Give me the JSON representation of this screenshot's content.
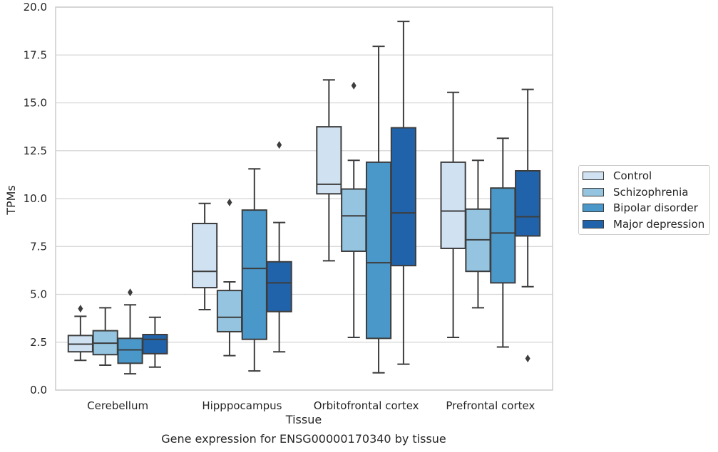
{
  "chart_data": {
    "type": "box",
    "title": "Gene expression for ENSG00000170340 by tissue",
    "xlabel": "Tissue",
    "ylabel": "TPMs",
    "ylim": [
      0,
      20
    ],
    "yticks": [
      "0.0",
      "2.5",
      "5.0",
      "7.5",
      "10.0",
      "12.5",
      "15.0",
      "17.5",
      "20.0"
    ],
    "categories": [
      "Cerebellum",
      "Hipppocampus",
      "Orbitofrontal cortex",
      "Prefrontal cortex"
    ],
    "grid": true,
    "legend_position": "right",
    "series": [
      {
        "name": "Control",
        "color": "#d0e1f2",
        "boxes": [
          {
            "whislo": 1.55,
            "q1": 2.0,
            "med": 2.4,
            "q3": 2.85,
            "whishi": 3.85,
            "fliers": [
              4.25
            ]
          },
          {
            "whislo": 4.2,
            "q1": 5.35,
            "med": 6.2,
            "q3": 8.7,
            "whishi": 9.75,
            "fliers": []
          },
          {
            "whislo": 6.75,
            "q1": 10.25,
            "med": 10.75,
            "q3": 13.75,
            "whishi": 16.2,
            "fliers": []
          },
          {
            "whislo": 2.75,
            "q1": 7.4,
            "med": 9.35,
            "q3": 11.9,
            "whishi": 15.55,
            "fliers": []
          }
        ]
      },
      {
        "name": "Schizophrenia",
        "color": "#94c4df",
        "boxes": [
          {
            "whislo": 1.3,
            "q1": 1.85,
            "med": 2.45,
            "q3": 3.1,
            "whishi": 4.3,
            "fliers": []
          },
          {
            "whislo": 1.8,
            "q1": 3.05,
            "med": 3.8,
            "q3": 5.2,
            "whishi": 5.65,
            "fliers": [
              9.8
            ]
          },
          {
            "whislo": 2.75,
            "q1": 7.25,
            "med": 9.1,
            "q3": 10.5,
            "whishi": 12.0,
            "fliers": [
              15.9
            ]
          },
          {
            "whislo": 4.3,
            "q1": 6.2,
            "med": 7.85,
            "q3": 9.45,
            "whishi": 12.0,
            "fliers": []
          }
        ]
      },
      {
        "name": "Bipolar disorder",
        "color": "#4a98c9",
        "boxes": [
          {
            "whislo": 0.85,
            "q1": 1.4,
            "med": 2.1,
            "q3": 2.7,
            "whishi": 4.45,
            "fliers": [
              5.1
            ]
          },
          {
            "whislo": 1.0,
            "q1": 2.65,
            "med": 6.35,
            "q3": 9.4,
            "whishi": 11.55,
            "fliers": []
          },
          {
            "whislo": 0.9,
            "q1": 2.7,
            "med": 6.65,
            "q3": 11.9,
            "whishi": 17.95,
            "fliers": []
          },
          {
            "whislo": 2.25,
            "q1": 5.6,
            "med": 8.2,
            "q3": 10.55,
            "whishi": 13.15,
            "fliers": []
          }
        ]
      },
      {
        "name": "Major depression",
        "color": "#2163aa",
        "boxes": [
          {
            "whislo": 1.2,
            "q1": 1.9,
            "med": 2.65,
            "q3": 2.9,
            "whishi": 3.8,
            "fliers": []
          },
          {
            "whislo": 2.0,
            "q1": 4.1,
            "med": 5.6,
            "q3": 6.7,
            "whishi": 8.75,
            "fliers": [
              12.8
            ]
          },
          {
            "whislo": 1.35,
            "q1": 6.5,
            "med": 9.25,
            "q3": 13.7,
            "whishi": 19.25,
            "fliers": []
          },
          {
            "whislo": 5.4,
            "q1": 8.05,
            "med": 9.05,
            "q3": 11.45,
            "whishi": 15.7,
            "fliers": [
              1.65
            ]
          }
        ]
      }
    ]
  }
}
